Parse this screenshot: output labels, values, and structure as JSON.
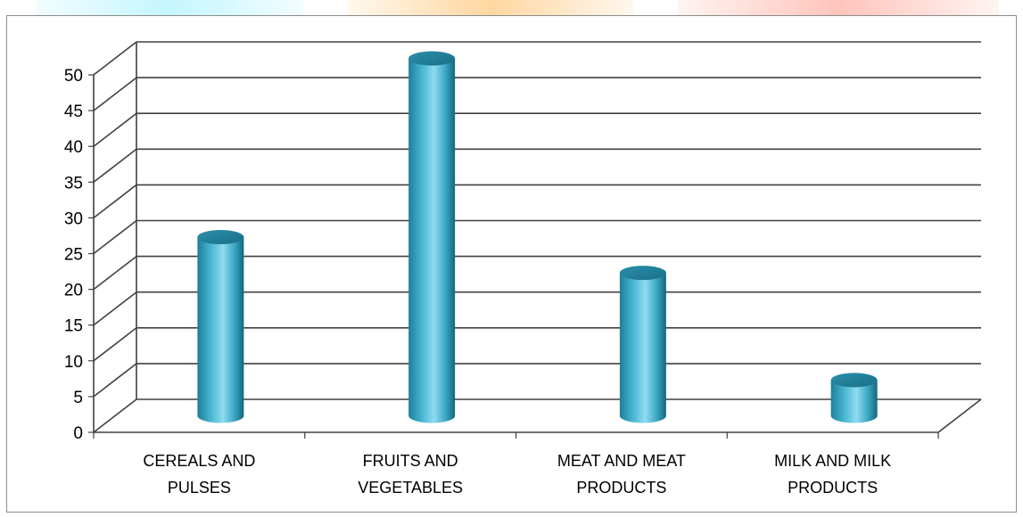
{
  "chart_data": {
    "type": "bar",
    "style": "3d-cylinder",
    "categories": [
      [
        "CEREALS AND",
        "PULSES"
      ],
      [
        "FRUITS AND",
        "VEGETABLES"
      ],
      [
        "MEAT AND MEAT",
        "PRODUCTS"
      ],
      [
        "MILK AND MILK",
        "PRODUCTS"
      ]
    ],
    "values": [
      25,
      50,
      20,
      5
    ],
    "ylim": [
      0,
      50
    ],
    "yticks": [
      "0",
      "5",
      "10",
      "15",
      "20",
      "25",
      "30",
      "35",
      "40",
      "45",
      "50"
    ],
    "grid": true,
    "legend": "none",
    "colors": {
      "bar": "#4bb8d4",
      "bar_dark": "#1d7f9a",
      "bar_light": "#8fdcef",
      "grid": "#404040",
      "frame": "#8c8c8c"
    }
  }
}
